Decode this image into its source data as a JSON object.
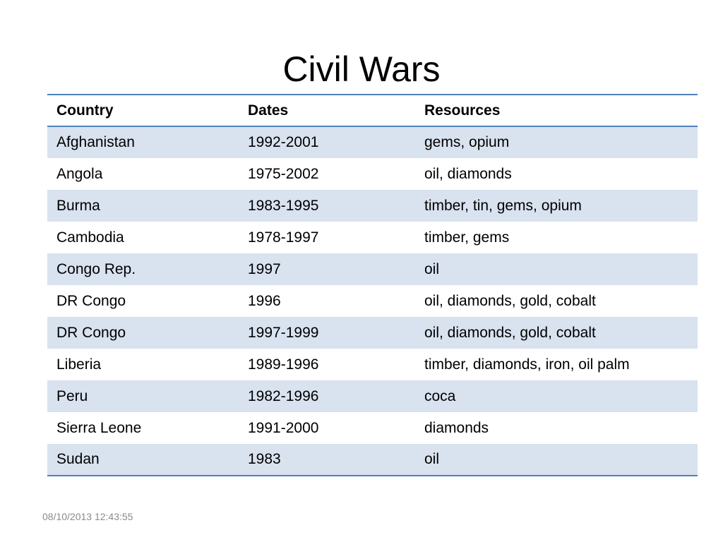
{
  "slide": {
    "title": "Civil Wars",
    "timestamp": "08/10/2013 12:43:55"
  },
  "table": {
    "headers": {
      "country": "Country",
      "dates": "Dates",
      "resources": "Resources"
    },
    "rows": [
      {
        "country": "Afghanistan",
        "dates": "1992-2001",
        "resources": "gems, opium"
      },
      {
        "country": "Angola",
        "dates": "1975-2002",
        "resources": "oil, diamonds"
      },
      {
        "country": "Burma",
        "dates": "1983-1995",
        "resources": "timber, tin, gems, opium"
      },
      {
        "country": "Cambodia",
        "dates": "1978-1997",
        "resources": "timber, gems"
      },
      {
        "country": "Congo Rep.",
        "dates": "1997",
        "resources": "oil"
      },
      {
        "country": "DR Congo",
        "dates": "1996",
        "resources": "oil, diamonds, gold, cobalt"
      },
      {
        "country": "DR Congo",
        "dates": "1997-1999",
        "resources": "oil, diamonds, gold, cobalt"
      },
      {
        "country": "Liberia",
        "dates": "1989-1996",
        "resources": "timber, diamonds, iron, oil palm"
      },
      {
        "country": "Peru",
        "dates": "1982-1996",
        "resources": "coca"
      },
      {
        "country": "Sierra Leone",
        "dates": "1991-2000",
        "resources": "diamonds"
      },
      {
        "country": "Sudan",
        "dates": "1983",
        "resources": "oil"
      }
    ]
  },
  "colors": {
    "accent_border": "#4f81bd",
    "band_fill": "#d9e2ef",
    "timestamp_text": "#8a8a8a"
  }
}
